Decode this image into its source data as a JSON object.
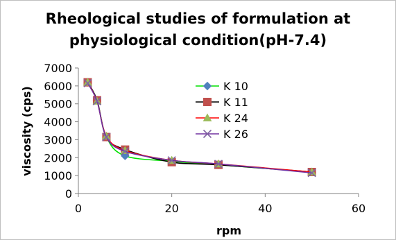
{
  "chart_data": {
    "type": "line",
    "title_lines": [
      "Rheological studies of formulation at",
      "physiological condition(pH-7.4)"
    ],
    "xlabel": "rpm",
    "ylabel": "viscosity (cps)",
    "xlim": [
      0,
      60
    ],
    "ylim": [
      0,
      7000
    ],
    "x_ticks": [
      0,
      20,
      40,
      60
    ],
    "y_ticks": [
      0,
      1000,
      2000,
      3000,
      4000,
      5000,
      6000,
      7000
    ],
    "grid": false,
    "legend": "center-right",
    "series": [
      {
        "name": "K 10",
        "color": "#00e000",
        "marker": "diamond",
        "marker_color": "#4f81bd",
        "x": [
          2,
          4,
          6,
          10,
          20,
          30,
          50
        ],
        "y": [
          6200,
          5200,
          3150,
          2100,
          1800,
          1600,
          1200
        ]
      },
      {
        "name": "K 11",
        "color": "#000000",
        "marker": "square",
        "marker_color": "#c0504d",
        "x": [
          2,
          4,
          6,
          10,
          20,
          30,
          50
        ],
        "y": [
          6200,
          5200,
          3150,
          2450,
          1750,
          1600,
          1200
        ]
      },
      {
        "name": "K 24",
        "color": "#ff0000",
        "marker": "triangle",
        "marker_color": "#9bbb59",
        "x": [
          2,
          4,
          6,
          10,
          20,
          30,
          50
        ],
        "y": [
          6200,
          5150,
          3200,
          2400,
          1850,
          1650,
          1200
        ]
      },
      {
        "name": "K 26",
        "color": "#7030a0",
        "marker": "x",
        "marker_color": "#8064a2",
        "x": [
          2,
          4,
          6,
          10,
          20,
          30,
          50
        ],
        "y": [
          6150,
          5150,
          3150,
          2350,
          1850,
          1650,
          1150
        ]
      }
    ]
  }
}
